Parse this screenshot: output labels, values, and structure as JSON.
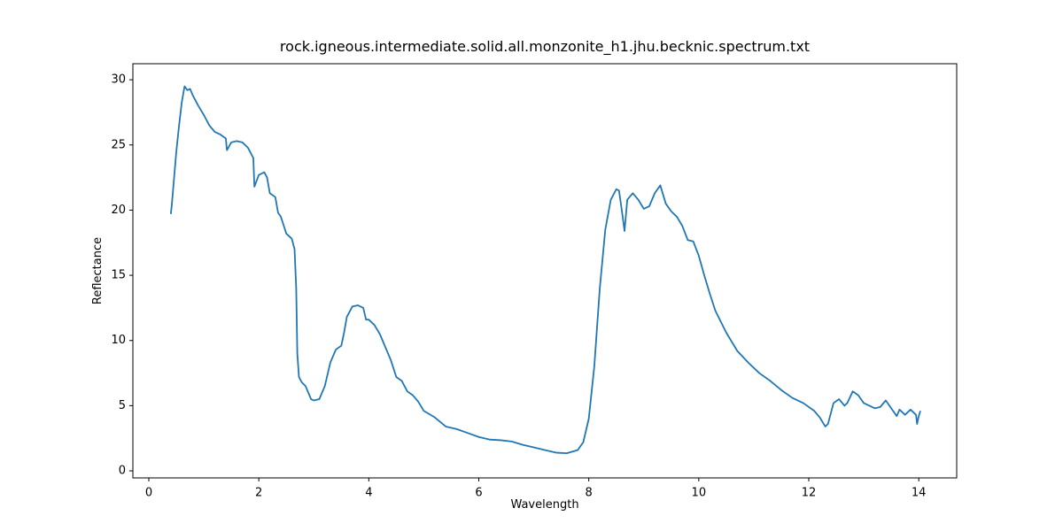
{
  "chart_data": {
    "type": "line",
    "title": "rock.igneous.intermediate.solid.all.monzonite_h1.jhu.becknic.spectrum.txt",
    "x_label": "Wavelength",
    "y_label": "Reflectance",
    "xlim": [
      -0.29,
      14.69
    ],
    "ylim": [
      -0.54,
      31.23
    ],
    "xticks": [
      0,
      2,
      4,
      6,
      8,
      10,
      12,
      14
    ],
    "yticks": [
      0,
      5,
      10,
      15,
      20,
      25,
      30
    ],
    "series": [
      {
        "color": "#1f77b4",
        "x": [
          0.4,
          0.42,
          0.45,
          0.5,
          0.55,
          0.6,
          0.65,
          0.7,
          0.75,
          0.8,
          0.9,
          1.0,
          1.1,
          1.2,
          1.3,
          1.4,
          1.42,
          1.5,
          1.6,
          1.7,
          1.8,
          1.9,
          1.92,
          2.0,
          2.1,
          2.15,
          2.2,
          2.3,
          2.35,
          2.4,
          2.5,
          2.6,
          2.65,
          2.68,
          2.7,
          2.73,
          2.78,
          2.85,
          2.95,
          3.0,
          3.1,
          3.2,
          3.3,
          3.4,
          3.5,
          3.55,
          3.6,
          3.7,
          3.8,
          3.9,
          3.95,
          4.0,
          4.1,
          4.2,
          4.3,
          4.4,
          4.5,
          4.6,
          4.7,
          4.8,
          4.9,
          5.0,
          5.2,
          5.4,
          5.6,
          5.8,
          6.0,
          6.2,
          6.4,
          6.6,
          6.8,
          7.0,
          7.2,
          7.4,
          7.6,
          7.8,
          7.9,
          8.0,
          8.1,
          8.2,
          8.3,
          8.4,
          8.5,
          8.55,
          8.6,
          8.65,
          8.7,
          8.8,
          8.9,
          9.0,
          9.1,
          9.2,
          9.3,
          9.4,
          9.5,
          9.6,
          9.7,
          9.8,
          9.9,
          10.0,
          10.1,
          10.2,
          10.3,
          10.5,
          10.7,
          10.9,
          11.1,
          11.3,
          11.5,
          11.7,
          11.9,
          12.1,
          12.2,
          12.3,
          12.35,
          12.45,
          12.55,
          12.65,
          12.7,
          12.8,
          12.9,
          13.0,
          13.2,
          13.3,
          13.4,
          13.5,
          13.6,
          13.65,
          13.75,
          13.85,
          13.95,
          13.97,
          14.0,
          14.03
        ],
        "values": [
          19.7,
          20.5,
          22,
          24.5,
          26.5,
          28.3,
          29.5,
          29.2,
          29.3,
          28.8,
          28,
          27.3,
          26.5,
          26,
          25.8,
          25.5,
          24.6,
          25.2,
          25.3,
          25.2,
          24.8,
          24,
          21.8,
          22.7,
          22.9,
          22.5,
          21.3,
          21,
          19.8,
          19.5,
          18.2,
          17.8,
          17,
          14,
          9,
          7.2,
          6.8,
          6.5,
          5.5,
          5.4,
          5.5,
          6.5,
          8.3,
          9.3,
          9.6,
          10.6,
          11.8,
          12.6,
          12.7,
          12.5,
          11.6,
          11.6,
          11.2,
          10.5,
          9.5,
          8.5,
          7.2,
          6.9,
          6.1,
          5.8,
          5.3,
          4.6,
          4.1,
          3.4,
          3.2,
          2.9,
          2.6,
          2.4,
          2.35,
          2.25,
          2,
          1.8,
          1.6,
          1.4,
          1.35,
          1.6,
          2.2,
          4,
          8,
          14,
          18.5,
          20.8,
          21.6,
          21.5,
          20,
          18.4,
          20.8,
          21.3,
          20.8,
          20.1,
          20.3,
          21.3,
          21.9,
          20.5,
          19.9,
          19.5,
          18.8,
          17.7,
          17.6,
          16.5,
          15,
          13.6,
          12.3,
          10.6,
          9.2,
          8.3,
          7.5,
          6.9,
          6.2,
          5.6,
          5.2,
          4.6,
          4.1,
          3.4,
          3.6,
          5.2,
          5.5,
          5,
          5.2,
          6.1,
          5.8,
          5.2,
          4.8,
          4.9,
          5.4,
          4.8,
          4.2,
          4.7,
          4.3,
          4.7,
          4.3,
          3.6,
          4.2,
          4.6
        ]
      }
    ]
  }
}
